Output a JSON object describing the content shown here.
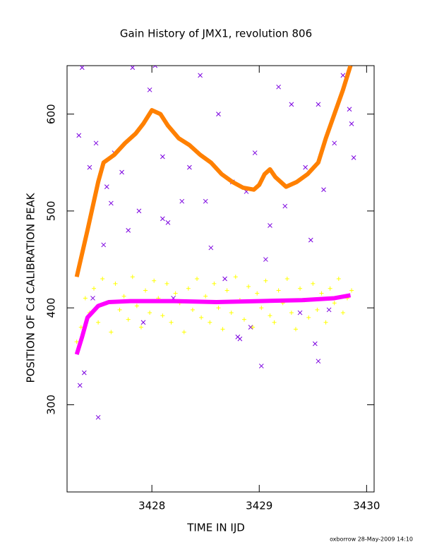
{
  "chart_data": {
    "type": "scatter",
    "title": "Gain History of JMX1, revolution 806",
    "x_label": "TIME IN IJD",
    "y_label": "POSITION OF Cd CALIBRATION PEAK",
    "footer": "oxborrow 28-May-2009 14:10",
    "xlim": [
      3427.21,
      3430.07
    ],
    "xticks": [
      3428,
      3429,
      3430
    ],
    "ylim": [
      210,
      650
    ],
    "yticks": [
      300,
      400,
      500,
      600
    ],
    "series": [
      {
        "color": "#7b00e0",
        "marker": "x",
        "mode": "markers",
        "x": [
          3427.32,
          3427.35,
          3427.33,
          3427.37,
          3427.42,
          3427.45,
          3427.48,
          3427.5,
          3427.55,
          3427.58,
          3427.62,
          3427.65,
          3427.72,
          3427.78,
          3427.82,
          3427.88,
          3427.92,
          3427.98,
          3428.03,
          3428.1,
          3428.15,
          3428.2,
          3428.28,
          3428.35,
          3428.45,
          3428.5,
          3428.55,
          3428.62,
          3428.68,
          3428.75,
          3428.82,
          3428.88,
          3428.92,
          3428.96,
          3429.02,
          3429.06,
          3429.1,
          3429.18,
          3429.24,
          3429.3,
          3429.38,
          3429.43,
          3429.48,
          3429.52,
          3429.55,
          3429.6,
          3429.65,
          3429.7,
          3429.78,
          3429.84,
          3429.88,
          3429.86,
          3429.55,
          3428.8,
          3428.1
        ],
        "values": [
          578,
          648,
          320,
          333,
          545,
          410,
          570,
          287,
          465,
          525,
          508,
          560,
          540,
          480,
          648,
          500,
          385,
          625,
          650,
          556,
          488,
          410,
          510,
          545,
          640,
          510,
          462,
          600,
          430,
          530,
          368,
          520,
          380,
          560,
          340,
          450,
          485,
          628,
          505,
          610,
          395,
          545,
          470,
          363,
          610,
          522,
          398,
          570,
          640,
          605,
          555,
          590,
          345,
          370,
          492
        ]
      },
      {
        "color": "#ffff00",
        "marker": "+",
        "mode": "markers",
        "x": [
          3427.3,
          3427.34,
          3427.38,
          3427.42,
          3427.46,
          3427.5,
          3427.54,
          3427.58,
          3427.62,
          3427.66,
          3427.7,
          3427.74,
          3427.78,
          3427.82,
          3427.86,
          3427.9,
          3427.94,
          3427.98,
          3428.02,
          3428.06,
          3428.1,
          3428.14,
          3428.18,
          3428.22,
          3428.26,
          3428.3,
          3428.34,
          3428.38,
          3428.42,
          3428.46,
          3428.5,
          3428.54,
          3428.58,
          3428.62,
          3428.66,
          3428.7,
          3428.74,
          3428.78,
          3428.82,
          3428.86,
          3428.9,
          3428.94,
          3428.98,
          3429.02,
          3429.06,
          3429.1,
          3429.14,
          3429.18,
          3429.22,
          3429.26,
          3429.3,
          3429.34,
          3429.38,
          3429.42,
          3429.46,
          3429.5,
          3429.54,
          3429.58,
          3429.62,
          3429.66,
          3429.7,
          3429.74,
          3429.78,
          3429.82,
          3429.86
        ],
        "values": [
          365,
          380,
          410,
          395,
          420,
          385,
          430,
          405,
          375,
          425,
          398,
          412,
          388,
          432,
          402,
          380,
          418,
          395,
          428,
          410,
          392,
          425,
          385,
          415,
          405,
          375,
          420,
          398,
          430,
          390,
          412,
          385,
          425,
          400,
          378,
          418,
          395,
          432,
          408,
          388,
          422,
          380,
          415,
          400,
          428,
          392,
          385,
          418,
          405,
          430,
          395,
          378,
          420,
          408,
          390,
          425,
          398,
          415,
          385,
          420,
          405,
          430,
          395,
          410,
          418
        ]
      },
      {
        "color": "#ff8000",
        "marker": "+",
        "mode": "line",
        "x": [
          3427.3,
          3427.4,
          3427.5,
          3427.55,
          3427.65,
          3427.75,
          3427.85,
          3427.92,
          3428.0,
          3428.08,
          3428.15,
          3428.25,
          3428.35,
          3428.45,
          3428.55,
          3428.65,
          3428.75,
          3428.85,
          3428.95,
          3429.0,
          3429.05,
          3429.1,
          3429.15,
          3429.25,
          3429.35,
          3429.45,
          3429.55,
          3429.62,
          3429.7,
          3429.78,
          3429.85
        ],
        "values": [
          432,
          480,
          530,
          550,
          558,
          570,
          580,
          590,
          604,
          600,
          588,
          575,
          568,
          558,
          550,
          538,
          530,
          524,
          522,
          527,
          538,
          543,
          535,
          525,
          530,
          538,
          550,
          575,
          600,
          625,
          650
        ]
      },
      {
        "color": "#ff00ff",
        "marker": "+",
        "mode": "line",
        "x": [
          3427.3,
          3427.35,
          3427.4,
          3427.5,
          3427.6,
          3427.8,
          3428.2,
          3428.6,
          3429.0,
          3429.4,
          3429.7,
          3429.85
        ],
        "values": [
          352,
          370,
          390,
          402,
          406,
          407,
          407,
          406,
          407,
          408,
          410,
          413
        ]
      }
    ]
  }
}
